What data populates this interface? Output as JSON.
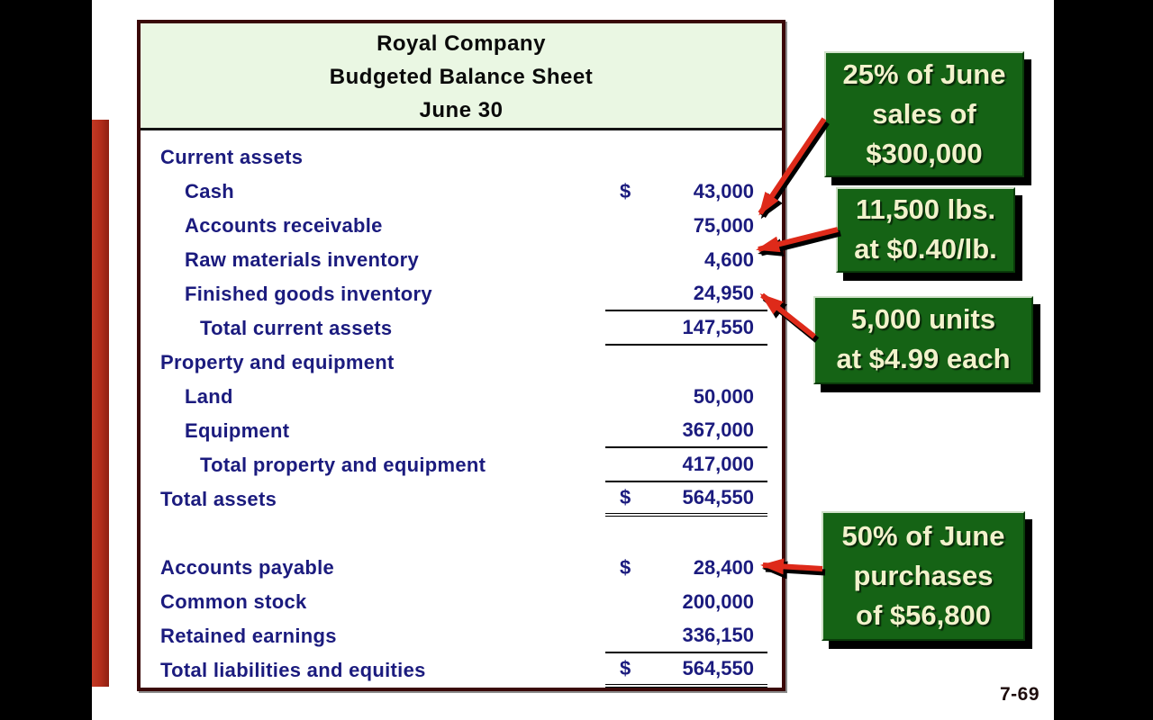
{
  "page": {
    "page_number": "7-69"
  },
  "balance_sheet": {
    "title_lines": [
      "Royal Company",
      "Budgeted Balance Sheet",
      "June 30"
    ],
    "rows": [
      {
        "label": "Current assets",
        "indent": 0,
        "dollar": "",
        "value": "",
        "underline": "none",
        "spacer": false
      },
      {
        "label": "Cash",
        "indent": 1,
        "dollar": "$",
        "value": "43,000",
        "underline": "none",
        "spacer": false
      },
      {
        "label": "Accounts receivable",
        "indent": 1,
        "dollar": "",
        "value": "75,000",
        "underline": "none",
        "spacer": false
      },
      {
        "label": "Raw materials inventory",
        "indent": 1,
        "dollar": "",
        "value": "4,600",
        "underline": "none",
        "spacer": false
      },
      {
        "label": "Finished goods inventory",
        "indent": 1,
        "dollar": "",
        "value": "24,950",
        "underline": "single",
        "spacer": false
      },
      {
        "label": "Total current assets",
        "indent": 2,
        "dollar": "",
        "value": "147,550",
        "underline": "single",
        "spacer": false
      },
      {
        "label": "Property and equipment",
        "indent": 0,
        "dollar": "",
        "value": "",
        "underline": "none",
        "spacer": false
      },
      {
        "label": "Land",
        "indent": 1,
        "dollar": "",
        "value": "50,000",
        "underline": "none",
        "spacer": false
      },
      {
        "label": "Equipment",
        "indent": 1,
        "dollar": "",
        "value": "367,000",
        "underline": "single",
        "spacer": false
      },
      {
        "label": "Total property and equipment",
        "indent": 2,
        "dollar": "",
        "value": "417,000",
        "underline": "single",
        "spacer": false
      },
      {
        "label": "Total assets",
        "indent": 0,
        "dollar": "$",
        "value": "564,550",
        "underline": "double",
        "spacer": false
      },
      {
        "label": "",
        "indent": 0,
        "dollar": "",
        "value": "",
        "underline": "none",
        "spacer": true
      },
      {
        "label": "Accounts payable",
        "indent": 0,
        "dollar": "$",
        "value": "28,400",
        "underline": "none",
        "spacer": false
      },
      {
        "label": "Common stock",
        "indent": 0,
        "dollar": "",
        "value": "200,000",
        "underline": "none",
        "spacer": false
      },
      {
        "label": "Retained earnings",
        "indent": 0,
        "dollar": "",
        "value": "336,150",
        "underline": "single",
        "spacer": false
      },
      {
        "label": "Total liabilities and equities",
        "indent": 0,
        "dollar": "$",
        "value": "564,550",
        "underline": "double",
        "spacer": false
      }
    ]
  },
  "callouts": [
    {
      "lines": [
        "25% of June",
        "sales of",
        "$300,000"
      ]
    },
    {
      "lines": [
        "11,500 lbs.",
        "at $0.40/lb."
      ]
    },
    {
      "lines": [
        "5,000 units",
        "at $4.99 each"
      ]
    },
    {
      "lines": [
        "50% of June",
        "purchases",
        "of $56,800"
      ]
    }
  ],
  "colors": {
    "text_navy": "#1b1b7e",
    "header_green": "#eaf7e3",
    "callout_green": "#156315",
    "callout_text_cream": "#f2f2cc",
    "arrow_red": "#de2a1a",
    "accent_bar_red": "#b02c1a",
    "table_border_maroon": "#3a0808"
  }
}
